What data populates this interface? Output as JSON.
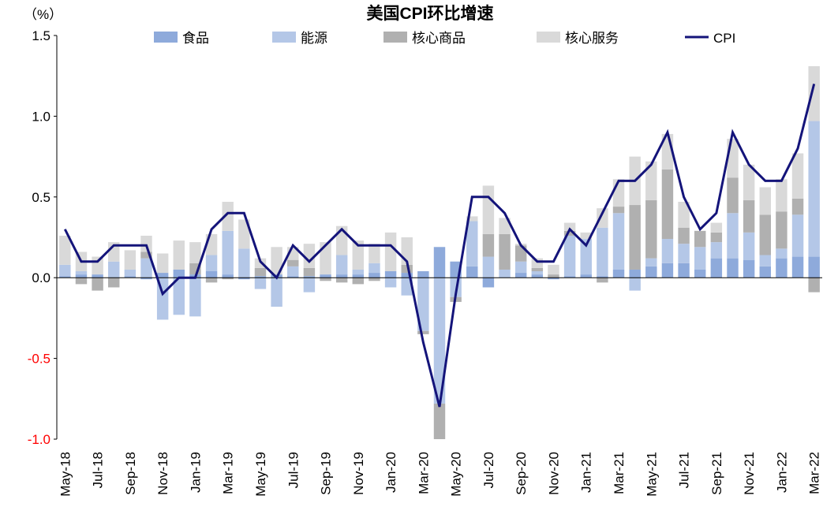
{
  "chart_data": {
    "type": "bar-line",
    "title": "美国CPI环比增速",
    "y_unit": "（%）",
    "categories": [
      "May-18",
      null,
      "Jul-18",
      null,
      "Sep-18",
      null,
      "Nov-18",
      null,
      "Jan-19",
      null,
      "Mar-19",
      null,
      "May-19",
      null,
      "Jul-19",
      null,
      "Sep-19",
      null,
      "Nov-19",
      null,
      "Jan-20",
      null,
      "Mar-20",
      null,
      "May-20",
      null,
      "Jul-20",
      null,
      "Sep-20",
      null,
      "Nov-20",
      null,
      "Jan-21",
      null,
      "Mar-21",
      null,
      "May-21",
      null,
      "Jul-21",
      null,
      "Sep-21",
      null,
      "Nov-21",
      null,
      "Jan-22",
      null,
      "Mar-22"
    ],
    "series": [
      {
        "name": "食品",
        "color": "#8eaadb",
        "kind": "bar",
        "values": [
          0.01,
          0.02,
          0.02,
          0,
          0.01,
          -0.01,
          0.03,
          0.05,
          0.02,
          0.04,
          0.02,
          -0.01,
          0.01,
          0.02,
          0.01,
          0.01,
          0.02,
          0.02,
          0.02,
          0.03,
          0.04,
          0.03,
          0.04,
          0.19,
          0.1,
          0.07,
          -0.06,
          0,
          0.03,
          0.02,
          -0.01,
          0.01,
          0.02,
          0.01,
          0.05,
          0.05,
          0.07,
          0.09,
          0.09,
          0.05,
          0.12,
          0.12,
          0.11,
          0.07,
          0.12,
          0.13,
          0.13
        ]
      },
      {
        "name": "能源",
        "color": "#b4c7e7",
        "kind": "bar",
        "values": [
          0.07,
          0.02,
          0,
          0.1,
          0.04,
          0.12,
          -0.26,
          -0.23,
          -0.24,
          0.1,
          0.27,
          0.18,
          -0.07,
          -0.18,
          0.06,
          -0.09,
          0,
          0.12,
          0.03,
          0.06,
          -0.06,
          -0.11,
          -0.33,
          -0.78,
          -0.12,
          0.28,
          0.13,
          0.05,
          0.07,
          0.02,
          0,
          0.25,
          0.22,
          0.3,
          0.35,
          -0.08,
          0.05,
          0.15,
          0.12,
          0.14,
          0.1,
          0.28,
          0.17,
          0.07,
          0.06,
          0.26,
          0.84
        ]
      },
      {
        "name": "核心商品",
        "color": "#b0b0b0",
        "kind": "bar",
        "values": [
          0,
          -0.04,
          -0.08,
          -0.06,
          0,
          0.04,
          0,
          0,
          0.07,
          -0.03,
          -0.01,
          0,
          0.05,
          0,
          0.04,
          0.05,
          -0.02,
          -0.03,
          -0.04,
          -0.02,
          0,
          0.05,
          -0.02,
          -0.22,
          -0.03,
          0,
          0.14,
          0.22,
          0.1,
          0.02,
          0.02,
          0.03,
          0,
          -0.03,
          0.04,
          0.4,
          0.36,
          0.43,
          0.1,
          0.1,
          0.06,
          0.22,
          0.2,
          0.25,
          0.23,
          0.1,
          -0.09
        ]
      },
      {
        "name": "核心服务",
        "color": "#d9d9d9",
        "kind": "bar",
        "values": [
          0.18,
          0.12,
          0.11,
          0.12,
          0.12,
          0.1,
          0.12,
          0.18,
          0.13,
          0.13,
          0.18,
          0.18,
          0.06,
          0.17,
          0.08,
          0.15,
          0.2,
          0.18,
          0.18,
          0.12,
          0.24,
          0.17,
          0,
          0,
          0,
          0.03,
          0.3,
          0.1,
          0.01,
          0.06,
          0.06,
          0.05,
          0.04,
          0.12,
          0.17,
          0.3,
          0.24,
          0.22,
          0.16,
          0,
          0.06,
          0.24,
          0.22,
          0.17,
          0.2,
          0.28,
          0.34
        ]
      },
      {
        "name": "CPI",
        "color": "#14147a",
        "kind": "line",
        "values": [
          0.3,
          0.1,
          0.1,
          0.2,
          0.2,
          0.2,
          -0.1,
          0,
          0,
          0.3,
          0.4,
          0.4,
          0.1,
          0,
          0.2,
          0.1,
          0.2,
          0.3,
          0.2,
          0.2,
          0.2,
          0.1,
          -0.4,
          -0.8,
          -0.1,
          0.5,
          0.5,
          0.4,
          0.2,
          0.1,
          0.1,
          0.3,
          0.2,
          0.4,
          0.6,
          0.6,
          0.7,
          0.9,
          0.5,
          0.3,
          0.4,
          0.9,
          0.7,
          0.6,
          0.6,
          0.8,
          1.2
        ]
      }
    ],
    "ylim": [
      -1.0,
      1.5
    ],
    "yticks": [
      {
        "value": 1.5,
        "label": "1.5"
      },
      {
        "value": 1,
        "label": "1.0"
      },
      {
        "value": 0.5,
        "label": "0.5"
      },
      {
        "value": 0,
        "label": "0.0"
      },
      {
        "value": -0.5,
        "label": "-0.5"
      },
      {
        "value": -1,
        "label": "-1.0"
      }
    ],
    "negative_tick_color": "#ff0000",
    "legend": "top"
  }
}
